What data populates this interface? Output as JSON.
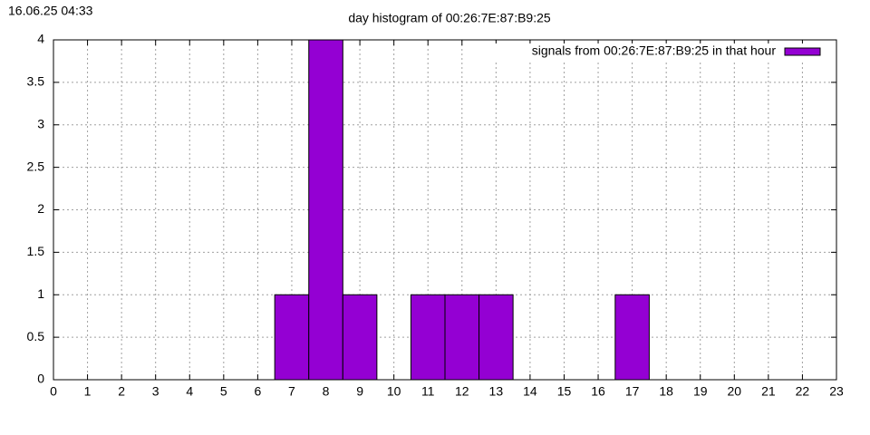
{
  "timestamp": "16.06.25 04:33",
  "chart_data": {
    "type": "bar",
    "title": "day histogram of 00:26:7E:87:B9:25",
    "x": [
      0,
      1,
      2,
      3,
      4,
      5,
      6,
      7,
      8,
      9,
      10,
      11,
      12,
      13,
      14,
      15,
      16,
      17,
      18,
      19,
      20,
      21,
      22
    ],
    "series": [
      {
        "name": "signals from 00:26:7E:87:B9:25 in that hour",
        "color": "#9400d3",
        "values": [
          0,
          0,
          0,
          0,
          0,
          0,
          0,
          1,
          4,
          1,
          0,
          1,
          1,
          1,
          0,
          0,
          0,
          1,
          0,
          0,
          0,
          0,
          0
        ]
      }
    ],
    "xlim": [
      0,
      23
    ],
    "xticks": [
      0,
      1,
      2,
      3,
      4,
      5,
      6,
      7,
      8,
      9,
      10,
      11,
      12,
      13,
      14,
      15,
      16,
      17,
      18,
      19,
      20,
      21,
      22,
      23
    ],
    "ylim": [
      0,
      4
    ],
    "yticks": [
      0,
      0.5,
      1,
      1.5,
      2,
      2.5,
      3,
      3.5,
      4
    ],
    "grid": true,
    "legend": "top-right"
  }
}
